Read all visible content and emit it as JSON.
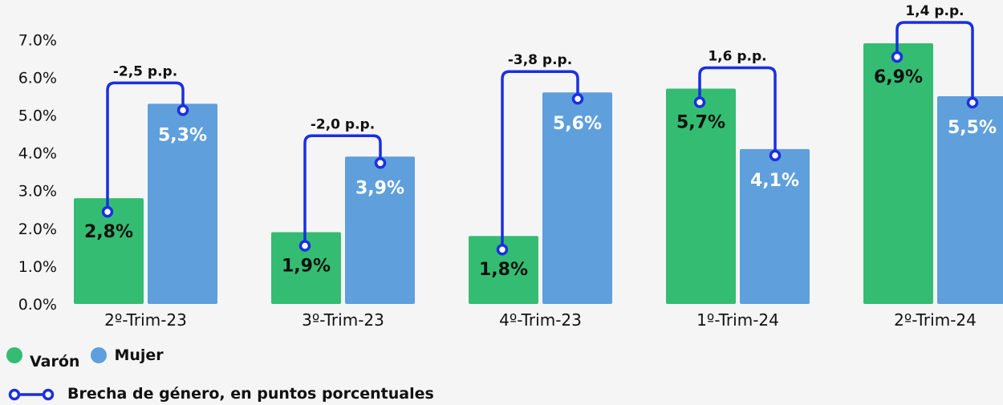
{
  "chart_data": {
    "type": "bar",
    "categories": [
      "2º-Trim-23",
      "3º-Trim-23",
      "4º-Trim-23",
      "1º-Trim-24",
      "2º-Trim-24"
    ],
    "series": [
      {
        "name": "Varón",
        "values": [
          2.8,
          1.9,
          1.8,
          5.7,
          6.9
        ],
        "labels": [
          "2,8%",
          "1,9%",
          "1,8%",
          "5,7%",
          "6,9%"
        ],
        "color": "#34bd72"
      },
      {
        "name": "Mujer",
        "values": [
          5.3,
          3.9,
          5.6,
          4.1,
          5.5
        ],
        "labels": [
          "5,3%",
          "3,9%",
          "5,6%",
          "4,1%",
          "5,5%"
        ],
        "color": "#5e9fdc"
      }
    ],
    "gap": {
      "name": "Brecha de género, en puntos porcentuales",
      "values": [
        -2.5,
        -2.0,
        -3.8,
        1.6,
        1.4
      ],
      "labels": [
        "-2,5 p.p.",
        "-2,0 p.p.",
        "-3,8 p.p.",
        "1,6 p.p.",
        "1,4 p.p."
      ],
      "color": "#1a2fe0"
    },
    "y_ticks": [
      "0.0%",
      "1.0%",
      "2.0%",
      "3.0%",
      "4.0%",
      "5.0%",
      "6.0%",
      "7.0%"
    ],
    "ylim": [
      0,
      7.4
    ],
    "grid": false,
    "legend_position": "bottom-left"
  },
  "legend": {
    "male_label": "Varón",
    "female_label": "Mujer",
    "gap_label": "Brecha de género, en puntos porcentuales"
  }
}
